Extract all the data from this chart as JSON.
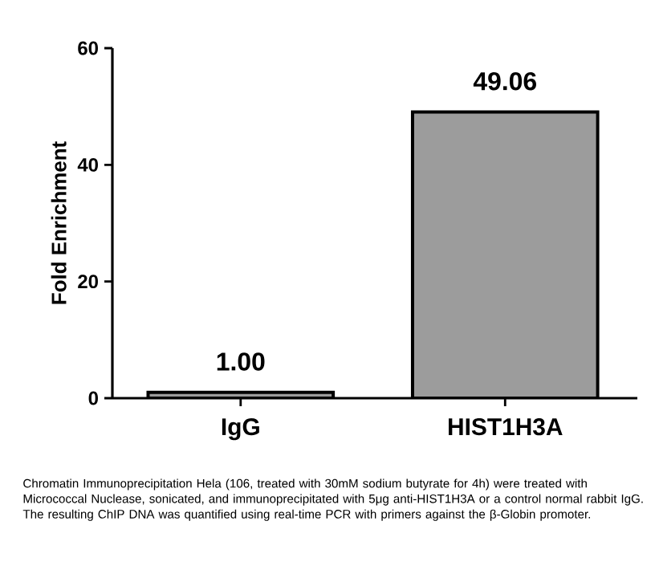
{
  "chart_data": {
    "type": "bar",
    "ylabel": "Fold Enrichment",
    "categories": [
      "IgG",
      "HIST1H3A"
    ],
    "values": [
      1.0,
      49.06
    ],
    "value_labels": [
      "1.00",
      "49.06"
    ],
    "color": "#9c9c9c",
    "ylim": [
      0,
      60
    ],
    "yticks": [
      0,
      20,
      40,
      60
    ],
    "annotations": [
      "Chromatin Immunoprecipitation Hela (106, treated with 30mM sodium butyrate for 4h) were treated with Micrococcal Nuclease, sonicated, and immunoprecipitated with 5μg anti-HIST1H3A or a control normal rabbit IgG. The resulting ChIP DNA was quantified using real-time PCR with primers against the β-Globin promoter."
    ]
  }
}
